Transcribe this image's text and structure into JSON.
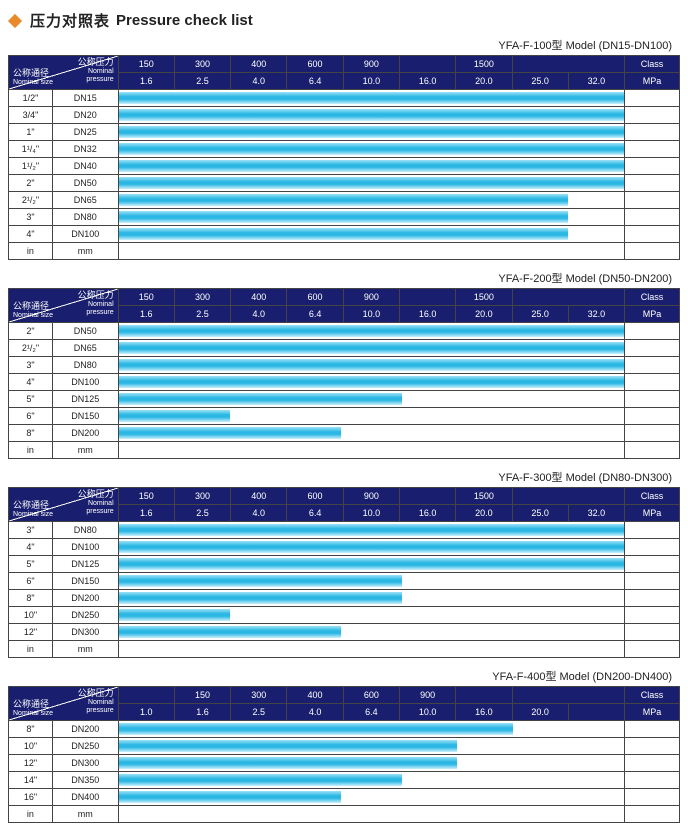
{
  "title": {
    "cn": "压力对照表",
    "en": "Pressure check list"
  },
  "diag_label": {
    "top_cn": "公称压力",
    "top_en1": "Nominal",
    "top_en2": "pressure",
    "bot_cn": "公称通径",
    "bot_en": "Nominal size"
  },
  "footer": {
    "in": "in",
    "mm": "mm"
  },
  "header_unit": {
    "class": "Class",
    "mpa": "MPa"
  },
  "colors": {
    "header_bg": "#191f6e",
    "bar_gradient": [
      "#9be2f7",
      "#2bb7e3",
      "#c9f0fb"
    ],
    "diamond": "#e88a2a",
    "border": "#444"
  },
  "tables": [
    {
      "subtitle": "YFA-F-100型  Model (DN15-DN100)",
      "class_vals": [
        "150",
        "300",
        "400",
        "600",
        "900",
        "",
        "1500",
        ""
      ],
      "class_spans": [
        1,
        1,
        1,
        1,
        1,
        1,
        1,
        2
      ],
      "mpa_vals": [
        "1.6",
        "2.5",
        "4.0",
        "6.4",
        "10.0",
        "16.0",
        "20.0",
        "25.0",
        "32.0"
      ],
      "rows": [
        {
          "in": "1/2\"",
          "dn": "DN15",
          "fill": 100
        },
        {
          "in": "3/4\"",
          "dn": "DN20",
          "fill": 100
        },
        {
          "in": "1\"",
          "dn": "DN25",
          "fill": 100
        },
        {
          "in": "1¹/₄\"",
          "dn": "DN32",
          "fill": 100
        },
        {
          "in": "1¹/₂\"",
          "dn": "DN40",
          "fill": 100
        },
        {
          "in": "2\"",
          "dn": "DN50",
          "fill": 100
        },
        {
          "in": "2¹/₂\"",
          "dn": "DN65",
          "fill": 89
        },
        {
          "in": "3\"",
          "dn": "DN80",
          "fill": 89
        },
        {
          "in": "4\"",
          "dn": "DN100",
          "fill": 89
        }
      ]
    },
    {
      "subtitle": "YFA-F-200型  Model (DN50-DN200)",
      "class_vals": [
        "150",
        "300",
        "400",
        "600",
        "900",
        "",
        "1500",
        ""
      ],
      "class_spans": [
        1,
        1,
        1,
        1,
        1,
        1,
        1,
        2
      ],
      "mpa_vals": [
        "1.6",
        "2.5",
        "4.0",
        "6.4",
        "10.0",
        "16.0",
        "20.0",
        "25.0",
        "32.0"
      ],
      "rows": [
        {
          "in": "2\"",
          "dn": "DN50",
          "fill": 100
        },
        {
          "in": "2¹/₂\"",
          "dn": "DN65",
          "fill": 100
        },
        {
          "in": "3\"",
          "dn": "DN80",
          "fill": 100
        },
        {
          "in": "4\"",
          "dn": "DN100",
          "fill": 100
        },
        {
          "in": "5\"",
          "dn": "DN125",
          "fill": 56
        },
        {
          "in": "6\"",
          "dn": "DN150",
          "fill": 22
        },
        {
          "in": "8\"",
          "dn": "DN200",
          "fill": 44
        }
      ]
    },
    {
      "subtitle": "YFA-F-300型  Model (DN80-DN300)",
      "class_vals": [
        "150",
        "300",
        "400",
        "600",
        "900",
        "",
        "1500",
        ""
      ],
      "class_spans": [
        1,
        1,
        1,
        1,
        1,
        1,
        1,
        2
      ],
      "mpa_vals": [
        "1.6",
        "2.5",
        "4.0",
        "6.4",
        "10.0",
        "16.0",
        "20.0",
        "25.0",
        "32.0"
      ],
      "rows": [
        {
          "in": "3\"",
          "dn": "DN80",
          "fill": 100
        },
        {
          "in": "4\"",
          "dn": "DN100",
          "fill": 100
        },
        {
          "in": "5\"",
          "dn": "DN125",
          "fill": 100
        },
        {
          "in": "6\"",
          "dn": "DN150",
          "fill": 56
        },
        {
          "in": "8\"",
          "dn": "DN200",
          "fill": 56
        },
        {
          "in": "10\"",
          "dn": "DN250",
          "fill": 22
        },
        {
          "in": "12\"",
          "dn": "DN300",
          "fill": 44
        }
      ]
    },
    {
      "subtitle": "YFA-F-400型  Model (DN200-DN400)",
      "class_vals": [
        "",
        "150",
        "300",
        "400",
        "600",
        "900",
        "",
        ""
      ],
      "class_spans": [
        1,
        1,
        1,
        1,
        1,
        1,
        1,
        2
      ],
      "mpa_vals": [
        "1.0",
        "1.6",
        "2.5",
        "4.0",
        "6.4",
        "10.0",
        "16.0",
        "20.0",
        ""
      ],
      "rows": [
        {
          "in": "8\"",
          "dn": "DN200",
          "fill": 78
        },
        {
          "in": "10\"",
          "dn": "DN250",
          "fill": 67
        },
        {
          "in": "12\"",
          "dn": "DN300",
          "fill": 67
        },
        {
          "in": "14\"",
          "dn": "DN350",
          "fill": 56
        },
        {
          "in": "16\"",
          "dn": "DN400",
          "fill": 44
        }
      ]
    }
  ]
}
